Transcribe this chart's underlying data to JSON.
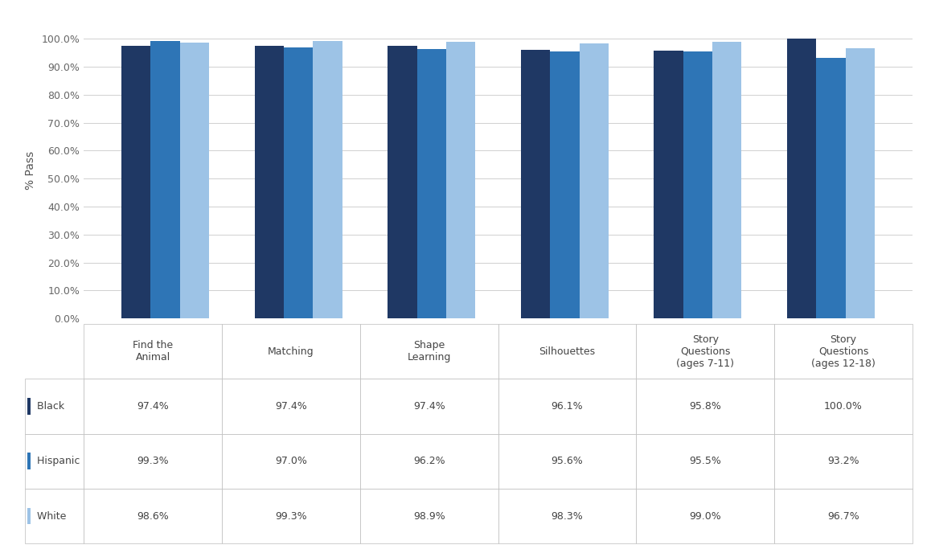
{
  "categories": [
    "Find the\nAnimal",
    "Matching",
    "Shape\nLearning",
    "Silhouettes",
    "Story\nQuestions\n(ages 7-11)",
    "Story\nQuestions\n(ages 12-18)"
  ],
  "series": {
    "Black": [
      97.4,
      97.4,
      97.4,
      96.1,
      95.8,
      100.0
    ],
    "Hispanic": [
      99.3,
      97.0,
      96.2,
      95.6,
      95.5,
      93.2
    ],
    "White": [
      98.6,
      99.3,
      98.9,
      98.3,
      99.0,
      96.7
    ]
  },
  "colors": {
    "Black": "#1F3864",
    "Hispanic": "#2E75B6",
    "White": "#9DC3E6"
  },
  "ylabel": "% Pass",
  "yticks": [
    0,
    10,
    20,
    30,
    40,
    50,
    60,
    70,
    80,
    90,
    100
  ],
  "ytick_labels": [
    "0.0%",
    "10.0%",
    "20.0%",
    "30.0%",
    "40.0%",
    "50.0%",
    "60.0%",
    "70.0%",
    "80.0%",
    "90.0%",
    "100.0%"
  ],
  "series_names": [
    "Black",
    "Hispanic",
    "White"
  ],
  "bar_width": 0.22,
  "background_color": "#FFFFFF",
  "grid_color": "#D0D0D0",
  "table_col_labels": [
    "Find the\nAnimal",
    "Matching",
    "Shape\nLearning",
    "Silhouettes",
    "Story\nQuestions\n(ages 7-11)",
    "Story\nQuestions\n(ages 12-18)"
  ],
  "cell_text": [
    [
      "97.4%",
      "97.4%",
      "97.4%",
      "96.1%",
      "95.8%",
      "100.0%"
    ],
    [
      "99.3%",
      "97.0%",
      "96.2%",
      "95.6%",
      "95.5%",
      "93.2%"
    ],
    [
      "98.6%",
      "99.3%",
      "98.9%",
      "98.3%",
      "99.0%",
      "96.7%"
    ]
  ]
}
